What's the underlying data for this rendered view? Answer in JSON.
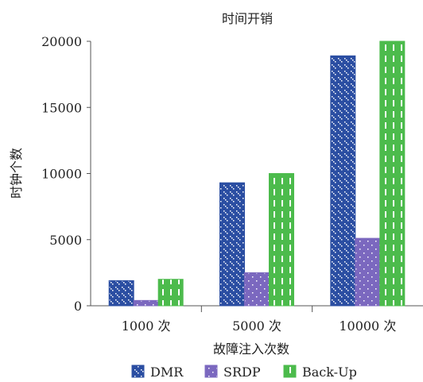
{
  "chart_data": {
    "type": "bar",
    "title": "时间开销",
    "xlabel": "故障注入次数",
    "ylabel": "时钟个数",
    "categories": [
      "1000 次",
      "5000 次",
      "10000 次"
    ],
    "ylim": [
      0,
      20000
    ],
    "yticks": [
      0,
      5000,
      10000,
      15000,
      20000
    ],
    "grid": false,
    "legend_position": "bottom",
    "series": [
      {
        "name": "DMR",
        "values": [
          1900,
          9300,
          18900
        ],
        "color": "#2b4ea2"
      },
      {
        "name": "SRDP",
        "values": [
          400,
          2500,
          5100
        ],
        "color": "#7b68bf"
      },
      {
        "name": "Back-Up",
        "values": [
          2000,
          10000,
          20000
        ],
        "color": "#4cbb4c"
      }
    ]
  }
}
